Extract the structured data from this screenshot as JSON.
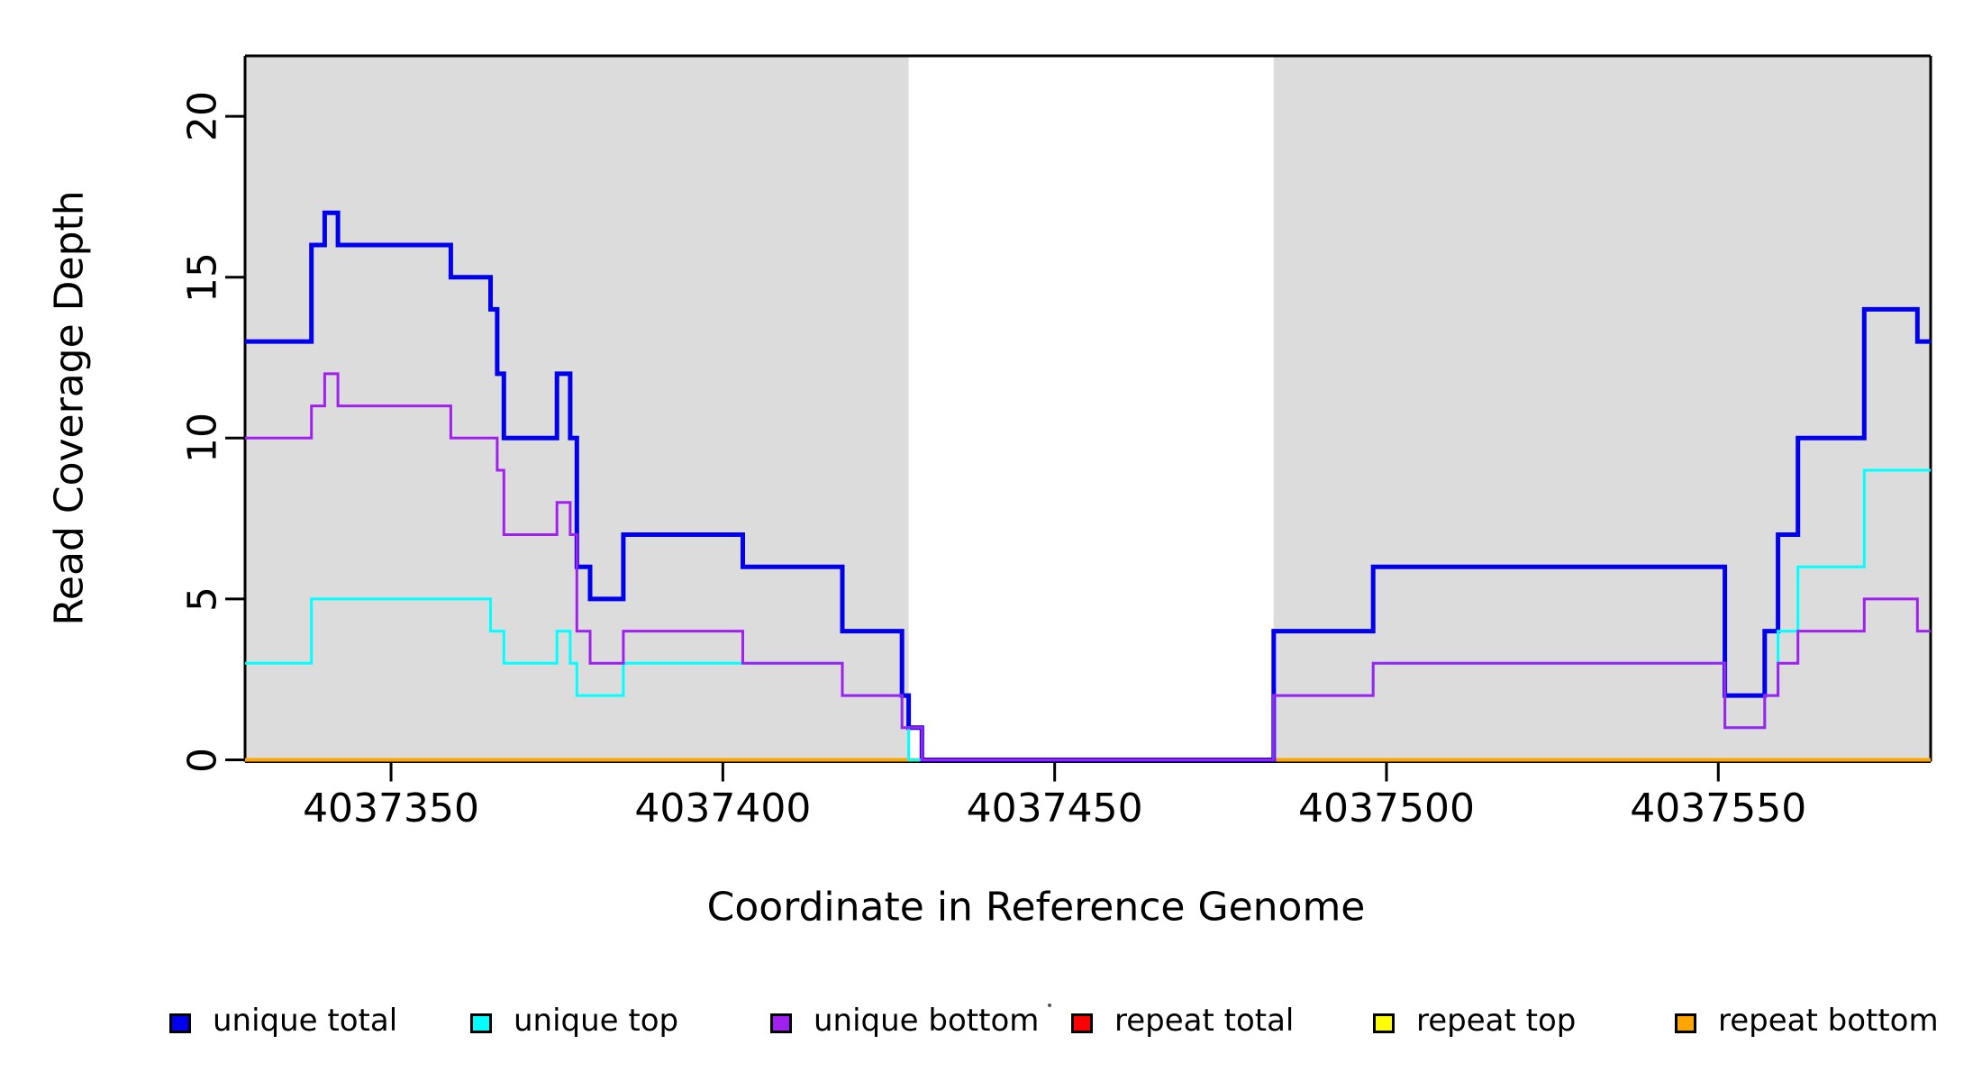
{
  "chart_data": {
    "type": "line",
    "subtype": "step",
    "title": "",
    "xlabel": "Coordinate in Reference Genome",
    "ylabel": "Read Coverage Depth",
    "xlim": [
      4037328,
      4037582
    ],
    "ylim": [
      0,
      21.9
    ],
    "grid": false,
    "x_ticks": [
      {
        "value": 4037350,
        "label": "4037350"
      },
      {
        "value": 4037400,
        "label": "4037400"
      },
      {
        "value": 4037450,
        "label": "4037450"
      },
      {
        "value": 4037500,
        "label": "4037500"
      },
      {
        "value": 4037550,
        "label": "4037550"
      }
    ],
    "y_ticks": [
      {
        "value": 0,
        "label": "0"
      },
      {
        "value": 5,
        "label": "5"
      },
      {
        "value": 10,
        "label": "10"
      },
      {
        "value": 15,
        "label": "15"
      },
      {
        "value": 20,
        "label": "20"
      }
    ],
    "background_shading": {
      "color": "#DCDCDC",
      "regions": [
        {
          "x0": 4037328,
          "x1": 4037428
        },
        {
          "x0": 4037483,
          "x1": 4037582
        }
      ]
    },
    "series": [
      {
        "name": "repeat total",
        "color": "#FF0000",
        "width": 4,
        "steps": [
          [
            4037328,
            0
          ]
        ]
      },
      {
        "name": "repeat top",
        "color": "#FFFF00",
        "width": 4,
        "steps": [
          [
            4037328,
            0
          ]
        ]
      },
      {
        "name": "repeat bottom",
        "color": "#FFA500",
        "width": 4,
        "steps": [
          [
            4037328,
            0
          ]
        ]
      },
      {
        "name": "unique total",
        "color": "#0000EE",
        "width": 5,
        "steps": [
          [
            4037328,
            13
          ],
          [
            4037338,
            16
          ],
          [
            4037340,
            17
          ],
          [
            4037342,
            16
          ],
          [
            4037359,
            15
          ],
          [
            4037365,
            14
          ],
          [
            4037366,
            12
          ],
          [
            4037367,
            10
          ],
          [
            4037375,
            12
          ],
          [
            4037377,
            10
          ],
          [
            4037378,
            6
          ],
          [
            4037380,
            5
          ],
          [
            4037385,
            7
          ],
          [
            4037403,
            6
          ],
          [
            4037418,
            4
          ],
          [
            4037427,
            2
          ],
          [
            4037428,
            1
          ],
          [
            4037430,
            0
          ],
          [
            4037483,
            4
          ],
          [
            4037498,
            6
          ],
          [
            4037551,
            2
          ],
          [
            4037557,
            4
          ],
          [
            4037559,
            7
          ],
          [
            4037562,
            10
          ],
          [
            4037572,
            14
          ],
          [
            4037580,
            13
          ]
        ]
      },
      {
        "name": "unique top",
        "color": "#00FFFF",
        "width": 3,
        "steps": [
          [
            4037328,
            3
          ],
          [
            4037338,
            5
          ],
          [
            4037365,
            4
          ],
          [
            4037367,
            3
          ],
          [
            4037375,
            4
          ],
          [
            4037377,
            3
          ],
          [
            4037378,
            2
          ],
          [
            4037385,
            3
          ],
          [
            4037418,
            2
          ],
          [
            4037427,
            1
          ],
          [
            4037428,
            0
          ],
          [
            4037483,
            2
          ],
          [
            4037498,
            3
          ],
          [
            4037551,
            1
          ],
          [
            4037557,
            2
          ],
          [
            4037559,
            4
          ],
          [
            4037562,
            6
          ],
          [
            4037572,
            9
          ]
        ]
      },
      {
        "name": "unique bottom",
        "color": "#A020F0",
        "width": 3,
        "steps": [
          [
            4037328,
            10
          ],
          [
            4037338,
            11
          ],
          [
            4037340,
            12
          ],
          [
            4037342,
            11
          ],
          [
            4037359,
            10
          ],
          [
            4037366,
            9
          ],
          [
            4037367,
            7
          ],
          [
            4037375,
            8
          ],
          [
            4037377,
            7
          ],
          [
            4037378,
            4
          ],
          [
            4037380,
            3
          ],
          [
            4037385,
            4
          ],
          [
            4037403,
            3
          ],
          [
            4037418,
            2
          ],
          [
            4037427,
            1
          ],
          [
            4037430,
            0
          ],
          [
            4037483,
            2
          ],
          [
            4037498,
            3
          ],
          [
            4037551,
            1
          ],
          [
            4037557,
            2
          ],
          [
            4037559,
            3
          ],
          [
            4037562,
            4
          ],
          [
            4037572,
            5
          ],
          [
            4037580,
            4
          ]
        ]
      }
    ],
    "legend": {
      "position": "bottom",
      "items": [
        {
          "label": "unique total",
          "color": "#0000EE"
        },
        {
          "label": "unique top",
          "color": "#00FFFF"
        },
        {
          "label": "unique bottom",
          "color": "#A020F0"
        },
        {
          "label": "repeat total",
          "color": "#FF0000"
        },
        {
          "label": "repeat top",
          "color": "#FFFF00"
        },
        {
          "label": "repeat bottom",
          "color": "#FFA500"
        }
      ]
    }
  }
}
